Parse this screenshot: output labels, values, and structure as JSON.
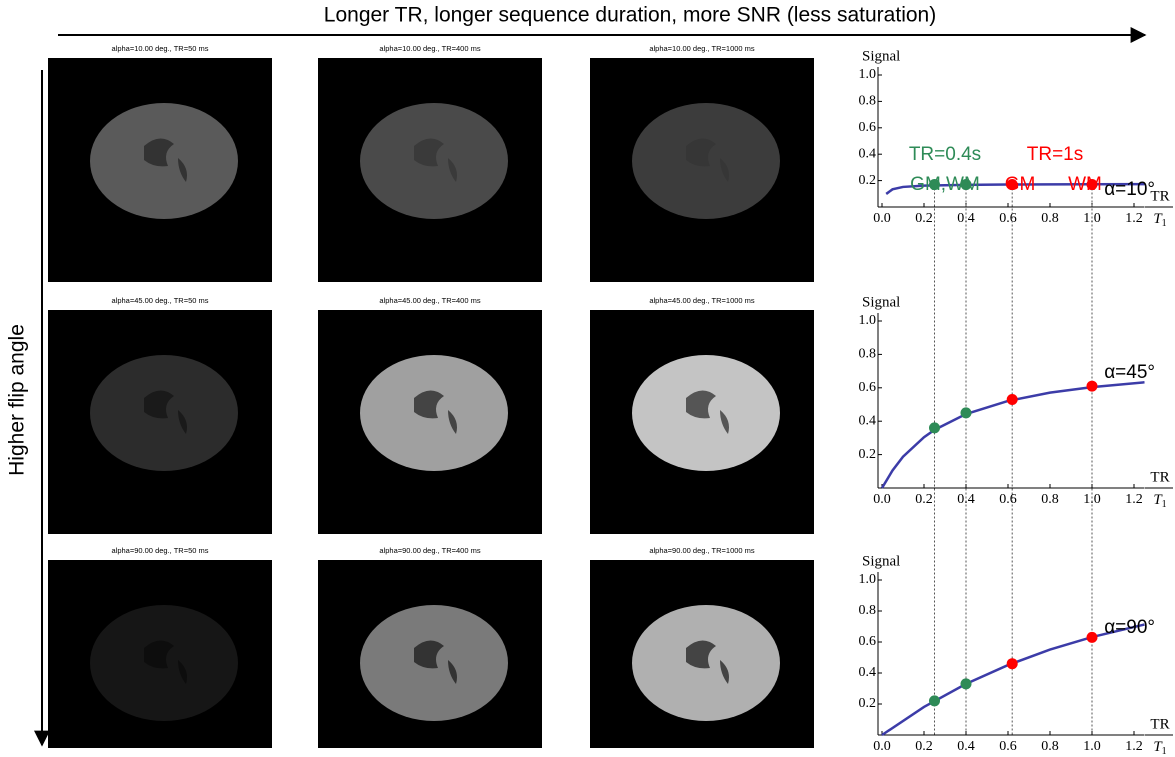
{
  "header": {
    "top_arrow_label": "Longer TR, longer sequence duration, more SNR (less saturation)",
    "side_arrow_label": "Higher  flip angle"
  },
  "images": [
    {
      "title": "alpha=10.00 deg., TR=50 ms"
    },
    {
      "title": "alpha=10.00 deg., TR=400 ms"
    },
    {
      "title": "alpha=10.00 deg., TR=1000 ms"
    },
    {
      "title": "alpha=45.00 deg., TR=50 ms"
    },
    {
      "title": "alpha=45.00 deg., TR=400 ms"
    },
    {
      "title": "alpha=45.00 deg., TR=1000 ms"
    },
    {
      "title": "alpha=90.00 deg., TR=50 ms"
    },
    {
      "title": "alpha=90.00 deg., TR=400 ms"
    },
    {
      "title": "alpha=90.00 deg., TR=1000 ms"
    }
  ],
  "chart_data": [
    {
      "type": "line",
      "ylabel": "Signal",
      "xlabel": {
        "numerator": "TR",
        "denominator": "T",
        "denominator_sub": "1"
      },
      "xlim": [
        0,
        1.25
      ],
      "ylim": [
        0,
        1
      ],
      "xticks": [
        {
          "value": 0,
          "label": "0.0"
        },
        0.2,
        0.4,
        0.6,
        0.8,
        {
          "value": 1,
          "label": "1.0"
        },
        1.2
      ],
      "yticks": [
        0.2,
        0.4,
        0.6,
        0.8,
        {
          "value": 1,
          "label": "1.0"
        }
      ],
      "annotations": [
        {
          "text": "α=10°",
          "color": "#000000"
        },
        {
          "text": "TR=0.4s",
          "color": "#2e8b57"
        },
        {
          "text": "GM,WM",
          "color": "#2e8b57"
        },
        {
          "text": "TR=1s",
          "color": "#ff0000"
        },
        {
          "text": "GM",
          "color": "#ff0000"
        },
        {
          "text": "WM",
          "color": "#ff0000"
        }
      ],
      "series": [
        {
          "style": "line",
          "color": "#3c3ca8",
          "x": [
            0.02,
            0.05,
            0.1,
            0.2,
            0.4,
            0.6,
            0.8,
            1.0,
            1.25
          ],
          "values": [
            0.099,
            0.134,
            0.152,
            0.162,
            0.168,
            0.17,
            0.171,
            0.172,
            0.173
          ]
        },
        {
          "style": "points",
          "color": "#2e8b57",
          "x": [
            0.25,
            0.4
          ],
          "values": [
            0.17,
            0.17
          ]
        },
        {
          "style": "points",
          "color": "#ff0000",
          "x": [
            0.62,
            1.0
          ],
          "values": [
            0.17,
            0.17
          ]
        }
      ]
    },
    {
      "type": "line",
      "ylabel": "Signal",
      "xlabel": {
        "numerator": "TR",
        "denominator": "T",
        "denominator_sub": "1"
      },
      "xlim": [
        0,
        1.25
      ],
      "ylim": [
        0,
        1
      ],
      "xticks": [
        {
          "value": 0,
          "label": "0.0"
        },
        0.2,
        0.4,
        0.6,
        0.8,
        {
          "value": 1,
          "label": "1.0"
        },
        1.2
      ],
      "yticks": [
        0.2,
        0.4,
        0.6,
        0.8,
        {
          "value": 1,
          "label": "1.0"
        }
      ],
      "annotations": [
        {
          "text": "α=45°",
          "color": "#000000"
        }
      ],
      "series": [
        {
          "style": "line",
          "color": "#3c3ca8",
          "x": [
            0,
            0.05,
            0.1,
            0.2,
            0.25,
            0.4,
            0.6,
            0.8,
            1.0,
            1.25
          ],
          "values": [
            0,
            0.105,
            0.187,
            0.304,
            0.348,
            0.443,
            0.521,
            0.571,
            0.604,
            0.633
          ]
        },
        {
          "style": "points",
          "color": "#2e8b57",
          "x": [
            0.25,
            0.4
          ],
          "values": [
            0.36,
            0.45
          ]
        },
        {
          "style": "points",
          "color": "#ff0000",
          "x": [
            0.62,
            1.0
          ],
          "values": [
            0.53,
            0.61
          ]
        }
      ]
    },
    {
      "type": "line",
      "ylabel": "Signal",
      "xlabel": {
        "numerator": "TR",
        "denominator": "T",
        "denominator_sub": "1"
      },
      "xlim": [
        0,
        1.25
      ],
      "ylim": [
        0,
        1
      ],
      "xticks": [
        {
          "value": 0,
          "label": "0.0"
        },
        0.2,
        0.4,
        0.6,
        0.8,
        {
          "value": 1,
          "label": "1.0"
        },
        1.2
      ],
      "yticks": [
        0.2,
        0.4,
        0.6,
        0.8,
        {
          "value": 1,
          "label": "1.0"
        }
      ],
      "annotations": [
        {
          "text": "α=90°",
          "color": "#000000"
        }
      ],
      "series": [
        {
          "style": "line",
          "color": "#3c3ca8",
          "x": [
            0,
            0.2,
            0.4,
            0.6,
            0.8,
            1.0,
            1.25
          ],
          "values": [
            0,
            0.181,
            0.33,
            0.451,
            0.551,
            0.632,
            0.713
          ]
        },
        {
          "style": "points",
          "color": "#2e8b57",
          "x": [
            0.25,
            0.4
          ],
          "values": [
            0.22,
            0.33
          ]
        },
        {
          "style": "points",
          "color": "#ff0000",
          "x": [
            0.62,
            1.0
          ],
          "values": [
            0.46,
            0.63
          ]
        }
      ]
    }
  ]
}
